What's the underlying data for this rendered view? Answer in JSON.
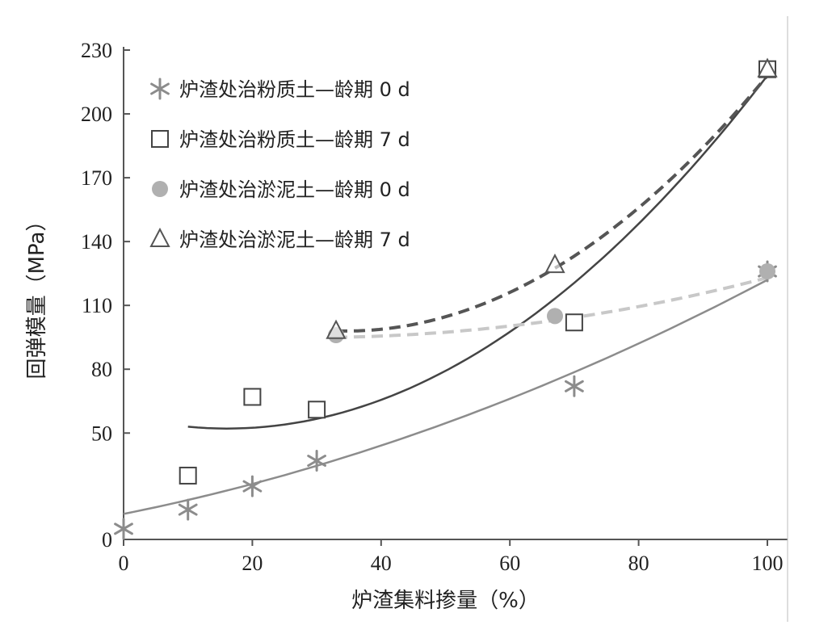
{
  "chart_data": {
    "type": "scatter",
    "title": "",
    "xlabel": "炉渣集料掺量（%）",
    "ylabel": "回弹模量（MPa）",
    "xlim": [
      0,
      100
    ],
    "ylim": [
      0,
      230
    ],
    "xticks": [
      0,
      20,
      40,
      60,
      80,
      100
    ],
    "yticks": [
      0,
      50,
      80,
      110,
      140,
      170,
      200,
      230
    ],
    "grid": false,
    "legend_position": "top-left",
    "series": [
      {
        "name": "炉渣处治粉质土—龄期 0 d",
        "marker": "asterisk",
        "color": "#8c8c8c",
        "x": [
          0,
          10,
          20,
          30,
          70,
          100
        ],
        "y": [
          5,
          14,
          25,
          37,
          72,
          126
        ],
        "trendline": {
          "style": "solid",
          "color": "#8c8c8c",
          "x": [
            0,
            100
          ],
          "y": [
            12,
            122
          ]
        }
      },
      {
        "name": "炉渣处治粉质土—龄期 7 d",
        "marker": "square",
        "color": "#444444",
        "x": [
          10,
          20,
          30,
          70,
          100
        ],
        "y": [
          30,
          67,
          61,
          102,
          221
        ],
        "trendline": {
          "style": "solid",
          "color": "#444444",
          "x": [
            10,
            100
          ],
          "y": [
            53,
            218
          ]
        }
      },
      {
        "name": "炉渣处治淤泥土—龄期 0 d",
        "marker": "circle",
        "color": "#b0b0b0",
        "x": [
          33,
          67,
          100
        ],
        "y": [
          96,
          105,
          126
        ],
        "trendline": {
          "style": "dashed",
          "color": "#c8c8c8",
          "x": [
            33,
            100
          ],
          "y": [
            95,
            123
          ]
        }
      },
      {
        "name": "炉渣处治淤泥土—龄期 7 d",
        "marker": "triangle",
        "color": "#555555",
        "x": [
          33,
          67,
          100
        ],
        "y": [
          98,
          129,
          221
        ],
        "trendline": {
          "style": "dashed",
          "color": "#555555",
          "x": [
            33,
            100
          ],
          "y": [
            98,
            218
          ]
        }
      }
    ]
  }
}
